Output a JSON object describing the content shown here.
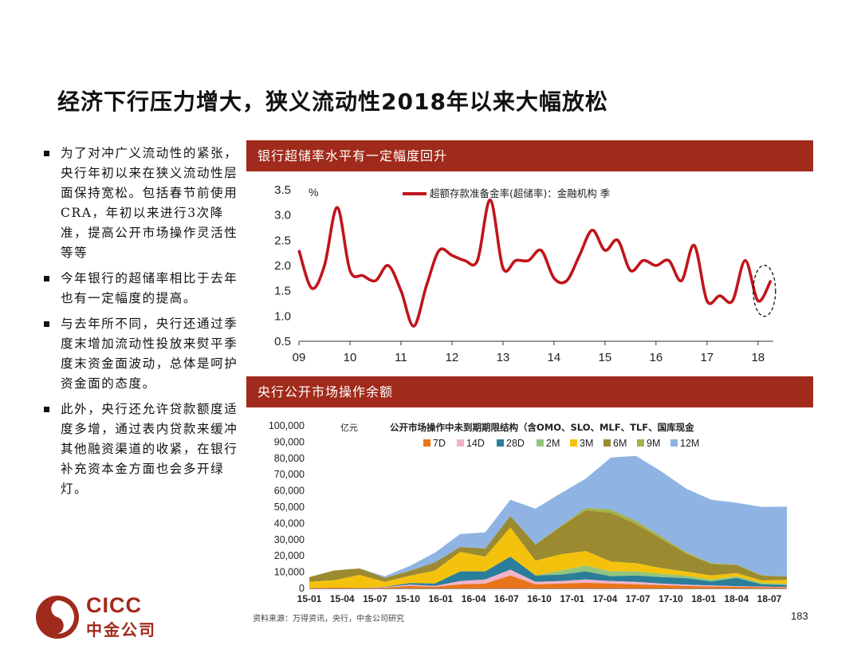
{
  "title": "经济下行压力增大，狭义流动性2018年以来大幅放松",
  "bullets": [
    "为了对冲广义流动性的紧张，央行年初以来在狭义流动性层面保持宽松。包括春节前使用CRA，年初以来进行3次降准，提高公开市场操作灵活性等等",
    "今年银行的超储率相比于去年也有一定幅度的提高。",
    "与去年所不同，央行还通过季度末增加流动性投放来熨平季度末资金面波动，总体是呵护资金面的态度。",
    "此外，央行还允许贷款额度适度多增，通过表内贷款来缓冲其他融资渠道的收紧，在银行补充资本金方面也会多开绿灯。"
  ],
  "panel_top_title": "银行超储率水平有一定幅度回升",
  "panel_bottom_title": "央行公开市场操作余额",
  "source": "资料来源：万得资讯，央行，中金公司研究",
  "page_number": "183",
  "logo": {
    "en": "CICC",
    "cn": "中金公司"
  },
  "colors": {
    "accent": "#a02a1b",
    "line": "#c0151b"
  },
  "chart_data": [
    {
      "type": "line",
      "title": "",
      "unit_label": "%",
      "ylim": [
        0.5,
        3.5
      ],
      "yticks": [
        "0.5",
        "1.0",
        "1.5",
        "2.0",
        "2.5",
        "3.0",
        "3.5"
      ],
      "xticks": [
        "09",
        "10",
        "11",
        "12",
        "13",
        "14",
        "15",
        "16",
        "17",
        "18"
      ],
      "xlim": [
        2009,
        2018.3
      ],
      "grid": false,
      "legend_position": "top",
      "annotation": "dashed ellipse around latest 2018 readings",
      "series": [
        {
          "name": "超额存款准备金率(超储率)：金融机构  季",
          "color": "#c0151b",
          "x": [
            2009.0,
            2009.25,
            2009.5,
            2009.75,
            2010.0,
            2010.25,
            2010.5,
            2010.75,
            2011.0,
            2011.25,
            2011.5,
            2011.75,
            2012.0,
            2012.25,
            2012.5,
            2012.75,
            2013.0,
            2013.25,
            2013.5,
            2013.75,
            2014.0,
            2014.25,
            2014.5,
            2014.75,
            2015.0,
            2015.25,
            2015.5,
            2015.75,
            2016.0,
            2016.25,
            2016.5,
            2016.75,
            2017.0,
            2017.25,
            2017.5,
            2017.75,
            2018.0,
            2018.25
          ],
          "values": [
            2.3,
            1.55,
            2.0,
            3.15,
            1.9,
            1.8,
            1.7,
            2.0,
            1.5,
            0.8,
            1.6,
            2.3,
            2.2,
            2.1,
            2.1,
            3.3,
            1.95,
            2.1,
            2.1,
            2.3,
            1.75,
            1.7,
            2.2,
            2.7,
            2.3,
            2.5,
            1.9,
            2.1,
            2.0,
            2.1,
            1.7,
            2.4,
            1.3,
            1.4,
            1.3,
            2.1,
            1.3,
            1.7
          ]
        }
      ]
    },
    {
      "type": "area",
      "title": "公开市场操作中未到期期限结构（含OMO、SLO、MLF、TLF、国库现金",
      "unit_label": "亿元",
      "ylim": [
        0,
        100000
      ],
      "yticks": [
        "0",
        "10,000",
        "20,000",
        "30,000",
        "40,000",
        "50,000",
        "60,000",
        "70,000",
        "80,000",
        "90,000",
        "100,000"
      ],
      "xticks": [
        "15-01",
        "15-04",
        "15-07",
        "15-10",
        "16-01",
        "16-04",
        "16-07",
        "16-10",
        "17-01",
        "17-04",
        "17-07",
        "17-10",
        "18-01",
        "18-04",
        "18-07"
      ],
      "legend_position": "top",
      "stacked": true,
      "series": [
        {
          "name": "7D",
          "color": "#e8751a",
          "values": [
            0,
            600,
            300,
            500,
            1500,
            1000,
            2500,
            3000,
            8000,
            2500,
            3000,
            3500,
            3000,
            2500,
            2000,
            1500,
            1200,
            1000,
            800,
            600
          ]
        },
        {
          "name": "14D",
          "color": "#f2b3c8",
          "values": [
            0,
            0,
            0,
            300,
            800,
            500,
            2000,
            2500,
            3500,
            1500,
            1500,
            2000,
            1500,
            1500,
            1000,
            800,
            600,
            400,
            300,
            300
          ]
        },
        {
          "name": "28D",
          "color": "#2a7e9a",
          "values": [
            0,
            0,
            0,
            200,
            1000,
            1500,
            6000,
            5000,
            8000,
            4000,
            4000,
            5000,
            3000,
            4000,
            4000,
            4000,
            2500,
            5000,
            1500,
            1200
          ]
        },
        {
          "name": "2M",
          "color": "#93c47d",
          "values": [
            0,
            0,
            0,
            0,
            0,
            0,
            0,
            0,
            0,
            0,
            2500,
            3500,
            3000,
            2500,
            2000,
            1500,
            1200,
            1000,
            800,
            700
          ]
        },
        {
          "name": "3M",
          "color": "#f4c20d",
          "values": [
            4000,
            4500,
            8000,
            3000,
            4500,
            8000,
            12000,
            9000,
            18000,
            9000,
            10000,
            9000,
            6000,
            5000,
            3500,
            2500,
            2500,
            2000,
            1500,
            2500
          ]
        },
        {
          "name": "6M",
          "color": "#9b8a2f",
          "values": [
            3000,
            6000,
            4000,
            2500,
            3000,
            5000,
            3000,
            5000,
            7000,
            10000,
            17000,
            25000,
            30000,
            24000,
            18000,
            11000,
            7000,
            5000,
            3000,
            2000
          ]
        },
        {
          "name": "9M",
          "color": "#a4b24a",
          "values": [
            0,
            0,
            0,
            0,
            0,
            0,
            0,
            0,
            0,
            0,
            500,
            1500,
            2000,
            2000,
            1500,
            1000,
            500,
            300,
            200,
            0
          ]
        },
        {
          "name": "12M",
          "color": "#8fb4e3",
          "values": [
            0,
            0,
            0,
            1000,
            3000,
            6000,
            8000,
            10000,
            10000,
            22000,
            20000,
            18000,
            32000,
            40000,
            40000,
            39000,
            39000,
            38000,
            42000,
            43000
          ]
        }
      ]
    }
  ]
}
